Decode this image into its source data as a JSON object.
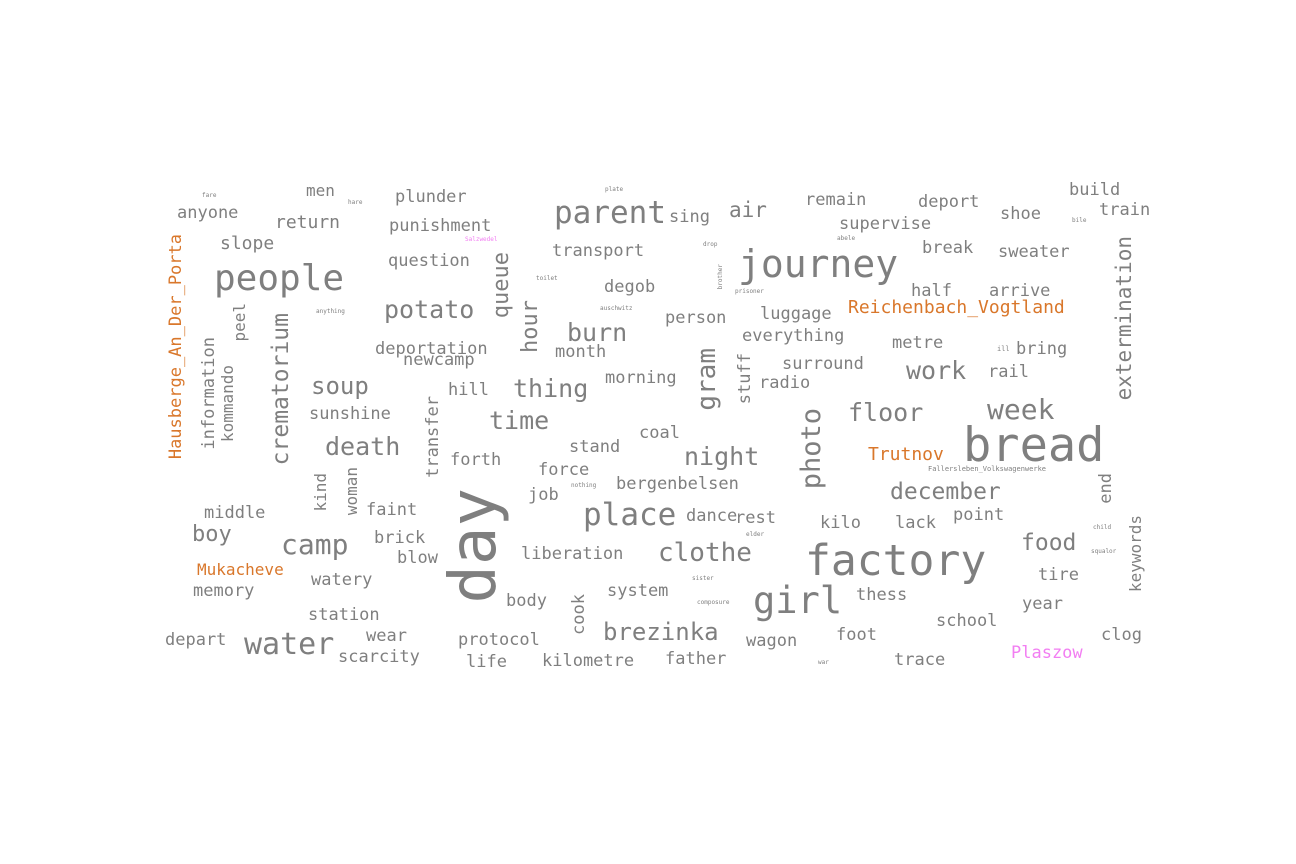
{
  "colors": {
    "default": "#7f7f7f",
    "place": "#d9772b",
    "camp": "#f27ef2"
  },
  "words": [
    {
      "text": "day",
      "color": "default"
    },
    {
      "text": "bread",
      "color": "default"
    },
    {
      "text": "factory",
      "color": "default"
    },
    {
      "text": "journey",
      "color": "default"
    },
    {
      "text": "people",
      "color": "default"
    },
    {
      "text": "girl",
      "color": "default"
    },
    {
      "text": "parent",
      "color": "default"
    },
    {
      "text": "place",
      "color": "default"
    },
    {
      "text": "water",
      "color": "default"
    },
    {
      "text": "camp",
      "color": "default"
    },
    {
      "text": "clothe",
      "color": "default"
    },
    {
      "text": "brezinka",
      "color": "default"
    },
    {
      "text": "photo",
      "color": "default"
    },
    {
      "text": "crematorium",
      "color": "default"
    },
    {
      "text": "gram",
      "color": "default"
    },
    {
      "text": "extermination",
      "color": "default"
    },
    {
      "text": "week",
      "color": "default"
    },
    {
      "text": "potato",
      "color": "default"
    },
    {
      "text": "thing",
      "color": "default"
    },
    {
      "text": "death",
      "color": "default"
    },
    {
      "text": "december",
      "color": "default"
    },
    {
      "text": "night",
      "color": "default"
    },
    {
      "text": "food",
      "color": "default"
    },
    {
      "text": "soup",
      "color": "default"
    },
    {
      "text": "time",
      "color": "default"
    },
    {
      "text": "floor",
      "color": "default"
    },
    {
      "text": "work",
      "color": "default"
    },
    {
      "text": "burn",
      "color": "default"
    },
    {
      "text": "hour",
      "color": "default"
    },
    {
      "text": "queue",
      "color": "default"
    },
    {
      "text": "boy",
      "color": "default"
    },
    {
      "text": "air",
      "color": "default"
    },
    {
      "text": "Hausberge_An_Der_Porta",
      "color": "place"
    },
    {
      "text": "Reichenbach_Vogtland",
      "color": "place"
    },
    {
      "text": "Trutnov",
      "color": "place"
    },
    {
      "text": "Mukacheve",
      "color": "place"
    },
    {
      "text": "Plaszow",
      "color": "camp"
    },
    {
      "text": "men",
      "color": "default"
    },
    {
      "text": "plunder",
      "color": "default"
    },
    {
      "text": "anyone",
      "color": "default"
    },
    {
      "text": "return",
      "color": "default"
    },
    {
      "text": "punishment",
      "color": "default"
    },
    {
      "text": "slope",
      "color": "default"
    },
    {
      "text": "question",
      "color": "default"
    },
    {
      "text": "transport",
      "color": "default"
    },
    {
      "text": "sing",
      "color": "default"
    },
    {
      "text": "remain",
      "color": "default"
    },
    {
      "text": "deport",
      "color": "default"
    },
    {
      "text": "shoe",
      "color": "default"
    },
    {
      "text": "build",
      "color": "default"
    },
    {
      "text": "train",
      "color": "default"
    },
    {
      "text": "supervise",
      "color": "default"
    },
    {
      "text": "break",
      "color": "default"
    },
    {
      "text": "sweater",
      "color": "default"
    },
    {
      "text": "degob",
      "color": "default"
    },
    {
      "text": "half",
      "color": "default"
    },
    {
      "text": "arrive",
      "color": "default"
    },
    {
      "text": "person",
      "color": "default"
    },
    {
      "text": "luggage",
      "color": "default"
    },
    {
      "text": "peel",
      "color": "default"
    },
    {
      "text": "information",
      "color": "default"
    },
    {
      "text": "kommando",
      "color": "default"
    },
    {
      "text": "deportation",
      "color": "default"
    },
    {
      "text": "newcamp",
      "color": "default"
    },
    {
      "text": "month",
      "color": "default"
    },
    {
      "text": "everything",
      "color": "default"
    },
    {
      "text": "metre",
      "color": "default"
    },
    {
      "text": "bring",
      "color": "default"
    },
    {
      "text": "morning",
      "color": "default"
    },
    {
      "text": "surround",
      "color": "default"
    },
    {
      "text": "radio",
      "color": "default"
    },
    {
      "text": "rail",
      "color": "default"
    },
    {
      "text": "stuff",
      "color": "default"
    },
    {
      "text": "sunshine",
      "color": "default"
    },
    {
      "text": "hill",
      "color": "default"
    },
    {
      "text": "transfer",
      "color": "default"
    },
    {
      "text": "coal",
      "color": "default"
    },
    {
      "text": "stand",
      "color": "default"
    },
    {
      "text": "forth",
      "color": "default"
    },
    {
      "text": "force",
      "color": "default"
    },
    {
      "text": "kind",
      "color": "default"
    },
    {
      "text": "woman",
      "color": "default"
    },
    {
      "text": "job",
      "color": "default"
    },
    {
      "text": "bergenbelsen",
      "color": "default"
    },
    {
      "text": "end",
      "color": "default"
    },
    {
      "text": "middle",
      "color": "default"
    },
    {
      "text": "faint",
      "color": "default"
    },
    {
      "text": "dance",
      "color": "default"
    },
    {
      "text": "rest",
      "color": "default"
    },
    {
      "text": "kilo",
      "color": "default"
    },
    {
      "text": "lack",
      "color": "default"
    },
    {
      "text": "point",
      "color": "default"
    },
    {
      "text": "brick",
      "color": "default"
    },
    {
      "text": "blow",
      "color": "default"
    },
    {
      "text": "liberation",
      "color": "default"
    },
    {
      "text": "keywords",
      "color": "default"
    },
    {
      "text": "watery",
      "color": "default"
    },
    {
      "text": "memory",
      "color": "default"
    },
    {
      "text": "body",
      "color": "default"
    },
    {
      "text": "system",
      "color": "default"
    },
    {
      "text": "tire",
      "color": "default"
    },
    {
      "text": "thess",
      "color": "default"
    },
    {
      "text": "year",
      "color": "default"
    },
    {
      "text": "station",
      "color": "default"
    },
    {
      "text": "cook",
      "color": "default"
    },
    {
      "text": "school",
      "color": "default"
    },
    {
      "text": "depart",
      "color": "default"
    },
    {
      "text": "wear",
      "color": "default"
    },
    {
      "text": "protocol",
      "color": "default"
    },
    {
      "text": "wagon",
      "color": "default"
    },
    {
      "text": "foot",
      "color": "default"
    },
    {
      "text": "clog",
      "color": "default"
    },
    {
      "text": "scarcity",
      "color": "default"
    },
    {
      "text": "life",
      "color": "default"
    },
    {
      "text": "kilometre",
      "color": "default"
    },
    {
      "text": "father",
      "color": "default"
    },
    {
      "text": "trace",
      "color": "default"
    },
    {
      "text": "Salzwedel",
      "color": "camp"
    },
    {
      "text": "toilet",
      "color": "default"
    },
    {
      "text": "auschwitz",
      "color": "default"
    },
    {
      "text": "plate",
      "color": "default"
    },
    {
      "text": "drop",
      "color": "default"
    },
    {
      "text": "brother",
      "color": "default"
    },
    {
      "text": "prisoner",
      "color": "default"
    },
    {
      "text": "anything",
      "color": "default"
    },
    {
      "text": "fare",
      "color": "default"
    },
    {
      "text": "hare",
      "color": "default"
    },
    {
      "text": "bile",
      "color": "default"
    },
    {
      "text": "nothing",
      "color": "default"
    },
    {
      "text": "elder",
      "color": "default"
    },
    {
      "text": "sister",
      "color": "default"
    },
    {
      "text": "composure",
      "color": "default"
    },
    {
      "text": "child",
      "color": "default"
    },
    {
      "text": "squalor",
      "color": "default"
    },
    {
      "text": "Fallersleben_Volkswagenwerke",
      "color": "default"
    },
    {
      "text": "war",
      "color": "default"
    },
    {
      "text": "ill",
      "color": "default"
    },
    {
      "text": "abele",
      "color": "default"
    }
  ]
}
